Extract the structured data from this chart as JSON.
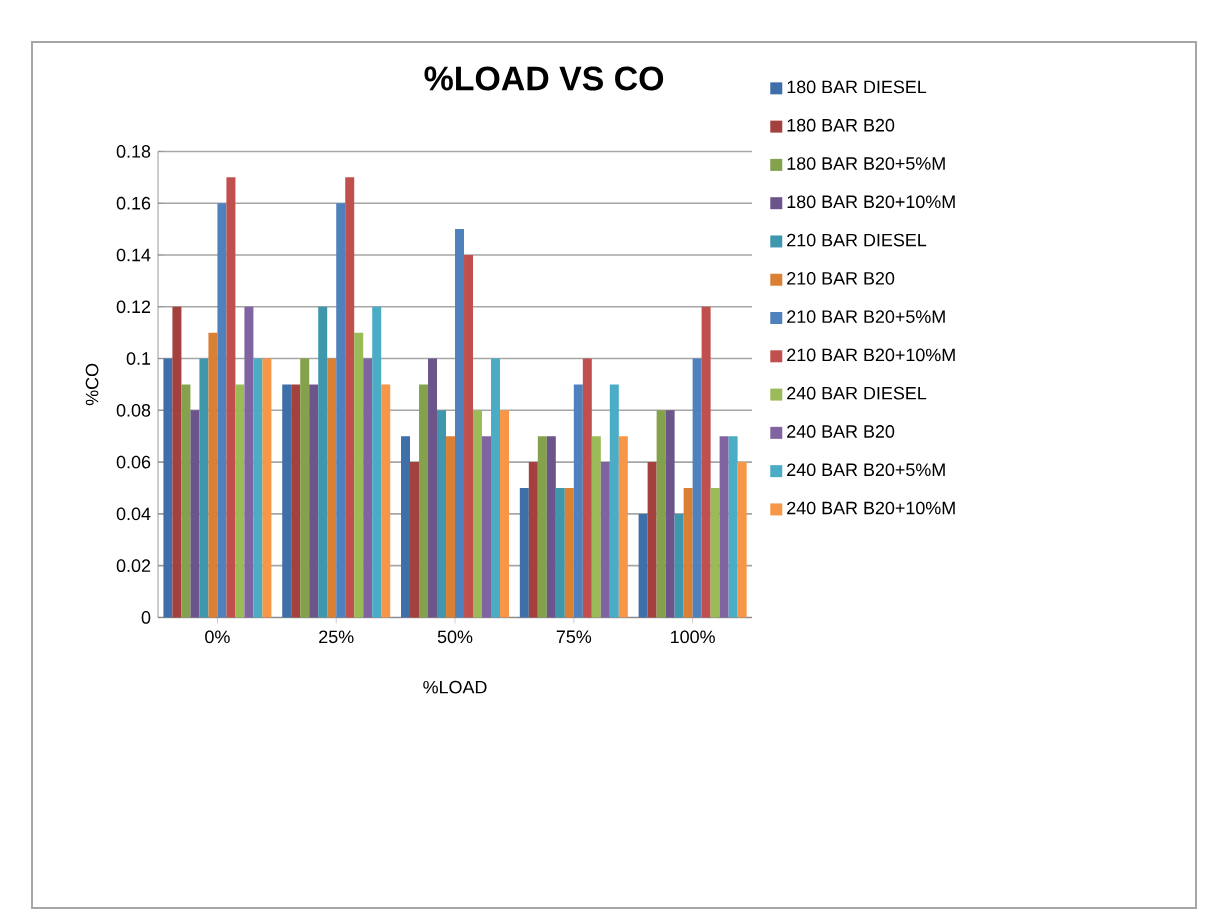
{
  "chart_data": {
    "type": "bar",
    "title": "%LOAD VS CO",
    "xlabel": "%LOAD",
    "ylabel": "%CO",
    "categories": [
      "0%",
      "25%",
      "50%",
      "75%",
      "100%"
    ],
    "ylim": [
      0,
      0.18
    ],
    "yticks": [
      0,
      0.02,
      0.04,
      0.06,
      0.08,
      0.1,
      0.12,
      0.14,
      0.16,
      0.18
    ],
    "grid": "y",
    "legend": "right",
    "series": [
      {
        "name": "180 BAR DIESEL",
        "color": "#3f6fa8",
        "values": [
          0.1,
          0.09,
          0.07,
          0.05,
          0.04
        ]
      },
      {
        "name": "180 BAR B20",
        "color": "#a4403d",
        "values": [
          0.12,
          0.09,
          0.06,
          0.06,
          0.06
        ]
      },
      {
        "name": "180 BAR B20+5%M",
        "color": "#84a24b",
        "values": [
          0.09,
          0.1,
          0.09,
          0.07,
          0.08
        ]
      },
      {
        "name": "180 BAR B20+10%M",
        "color": "#6c558a",
        "values": [
          0.08,
          0.09,
          0.1,
          0.07,
          0.08
        ]
      },
      {
        "name": "210 BAR DIESEL",
        "color": "#3f97ae",
        "values": [
          0.1,
          0.12,
          0.08,
          0.05,
          0.04
        ]
      },
      {
        "name": "210 BAR B20",
        "color": "#d98035",
        "values": [
          0.11,
          0.1,
          0.07,
          0.05,
          0.05
        ]
      },
      {
        "name": "210 BAR B20+5%M",
        "color": "#4f81bd",
        "values": [
          0.16,
          0.16,
          0.15,
          0.09,
          0.1
        ]
      },
      {
        "name": "210 BAR B20+10%M",
        "color": "#c0504d",
        "values": [
          0.17,
          0.17,
          0.14,
          0.1,
          0.12
        ]
      },
      {
        "name": "240 BAR DIESEL",
        "color": "#9bbb59",
        "values": [
          0.09,
          0.11,
          0.08,
          0.07,
          0.05
        ]
      },
      {
        "name": "240 BAR B20",
        "color": "#8064a2",
        "values": [
          0.12,
          0.1,
          0.07,
          0.06,
          0.07
        ]
      },
      {
        "name": "240 BAR B20+5%M",
        "color": "#4bacc6",
        "values": [
          0.1,
          0.12,
          0.1,
          0.09,
          0.07
        ]
      },
      {
        "name": "240 BAR B20+10%M",
        "color": "#f79646",
        "values": [
          0.1,
          0.09,
          0.08,
          0.07,
          0.06
        ]
      }
    ]
  }
}
